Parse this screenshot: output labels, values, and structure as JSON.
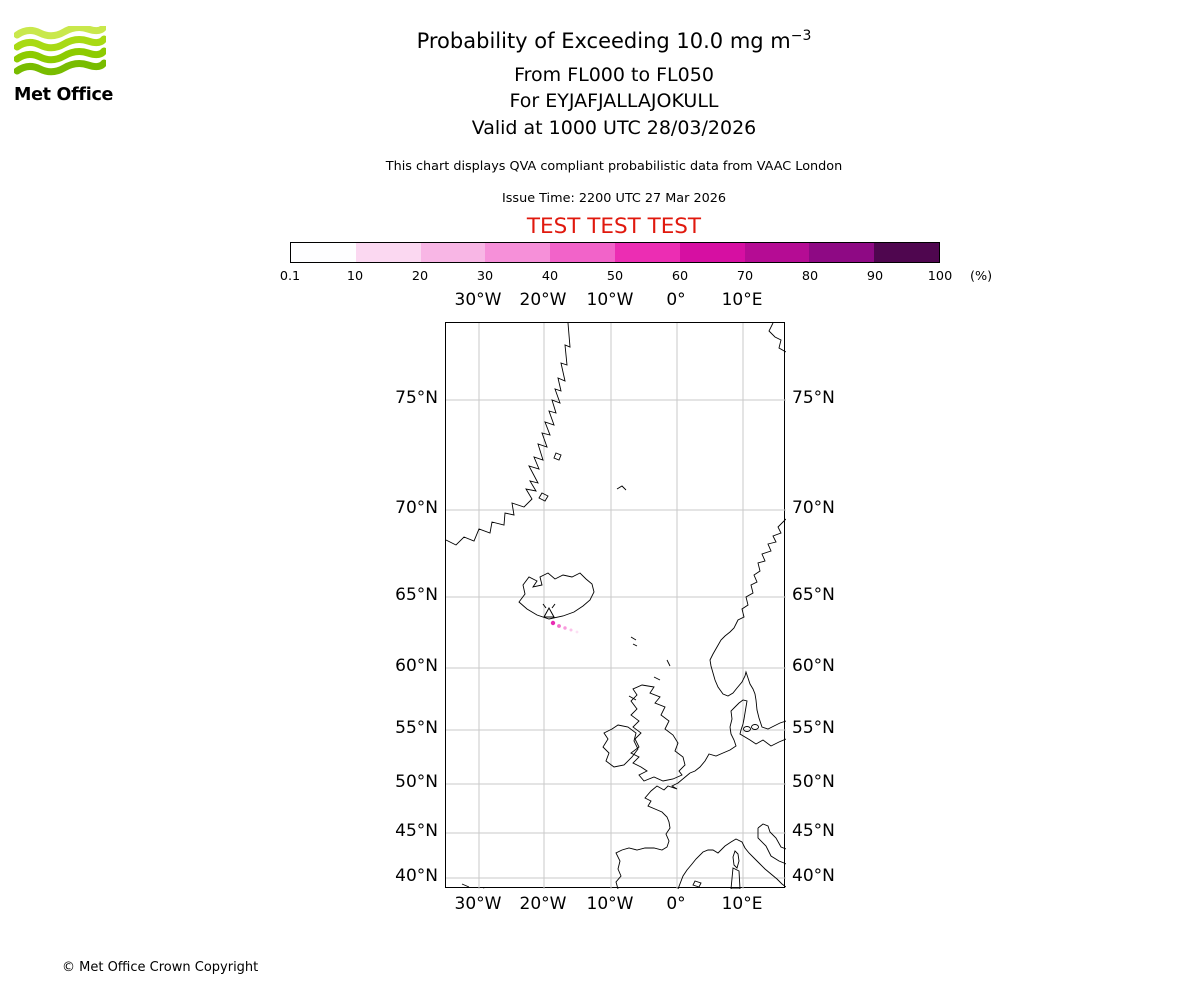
{
  "logo": {
    "wordmark": "Met Office",
    "wave_colors": [
      "#c9e84c",
      "#a8da14",
      "#8dcb00",
      "#78bc00"
    ]
  },
  "header": {
    "title": "Probability of Exceeding 10.0 mg m",
    "title_exponent": "−3",
    "subtitle_flight_levels": "From FL000 to FL050",
    "subtitle_volcano": "For EYJAFJALLAJOKULL",
    "subtitle_valid": "Valid at 1000 UTC 28/03/2026",
    "description": "This chart displays QVA compliant probabilistic data from VAAC London",
    "issue_time": "Issue Time: 2200 UTC 27 Mar 2026",
    "test_banner": "TEST TEST TEST"
  },
  "colors": {
    "test_red": "#e0190e",
    "grid": "#cacaca",
    "coastline": "#000000"
  },
  "colorbar": {
    "segment_colors": [
      "#fefeff",
      "#fbd8f1",
      "#f8b6e5",
      "#f690d9",
      "#f263c9",
      "#ec2db3",
      "#d60fa2",
      "#b50c94",
      "#8e0984",
      "#4f064f"
    ],
    "tick_labels": [
      "0.1",
      "10",
      "20",
      "30",
      "40",
      "50",
      "60",
      "70",
      "80",
      "90",
      "100"
    ],
    "unit_label": "(%)"
  },
  "map": {
    "lon_labels": [
      "30°W",
      "20°W",
      "10°W",
      "0°",
      "10°E"
    ],
    "lat_labels": [
      "75°N",
      "70°N",
      "65°N",
      "60°N",
      "55°N",
      "50°N",
      "45°N",
      "40°N"
    ],
    "ash_dot_colors": [
      "#e82bb2",
      "#f36cc9",
      "#f89adc",
      "#fbc2ea",
      "#fde0f4"
    ]
  },
  "footer": {
    "copyright": "© Met Office Crown Copyright"
  },
  "chart_data": {
    "type": "heatmap",
    "title": "Probability of Exceeding 10.0 mg m−3",
    "subtitle": "From FL000 to FL050, For EYJAFJALLAJOKULL, Valid at 1000 UTC 28/03/2026",
    "legend": {
      "label": "(%)",
      "boundaries_percent": [
        0.1,
        10,
        20,
        30,
        40,
        50,
        60,
        70,
        80,
        90,
        100
      ],
      "orientation": "horizontal",
      "position": "top"
    },
    "x_axis": {
      "ticks": [
        "30°W",
        "20°W",
        "10°W",
        "0°",
        "10°E"
      ],
      "approx_range_deg_lon": [
        -35,
        16.5
      ]
    },
    "y_axis": {
      "ticks": [
        "75°N",
        "70°N",
        "65°N",
        "60°N",
        "55°N",
        "50°N",
        "45°N",
        "40°N"
      ],
      "approx_range_deg_lat": [
        38.9,
        78.5
      ]
    },
    "grid": true,
    "features": [
      {
        "name": "volcano_marker",
        "description": "Source volcano marker on Iceland (Eyjafjallajokull)"
      },
      {
        "name": "ash_probability_area",
        "description": "Very small low-probability plume immediately south-east of the volcano",
        "approx_max_percent": 50
      }
    ]
  }
}
